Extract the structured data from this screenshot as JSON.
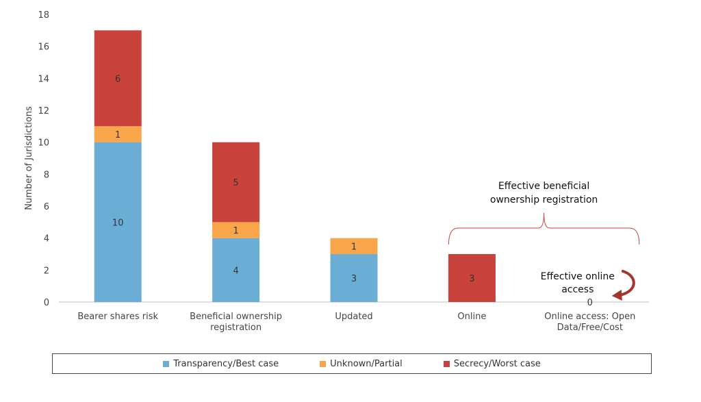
{
  "chart_data": {
    "type": "bar",
    "stacked": true,
    "ylabel": "Number of Jurisdictions",
    "ylim": [
      0,
      18
    ],
    "yticks": [
      0,
      2,
      4,
      6,
      8,
      10,
      12,
      14,
      16,
      18
    ],
    "categories": [
      [
        "Bearer shares risk"
      ],
      [
        "Beneficial ownership",
        "registration"
      ],
      [
        "Updated"
      ],
      [
        "Online"
      ],
      [
        "Online access: Open",
        "Data/Free/Cost"
      ]
    ],
    "series": [
      {
        "name": "Transparency/Best case",
        "color": "#6aaed6",
        "values": [
          10,
          4,
          3,
          0,
          0
        ]
      },
      {
        "name": "Unknown/Partial",
        "color": "#f9a54a",
        "values": [
          1,
          1,
          1,
          0,
          0
        ]
      },
      {
        "name": "Secrecy/Worst case",
        "color": "#c9423c",
        "values": [
          6,
          5,
          0,
          3,
          0
        ]
      }
    ],
    "zero_labels": [
      {
        "category_index": 4,
        "text": "0"
      }
    ],
    "annotations": [
      {
        "lines": [
          "Effective beneficial",
          "ownership registration"
        ],
        "type": "brace",
        "from_category": 3,
        "to_category": 4
      },
      {
        "lines": [
          "Effective online",
          "access"
        ],
        "type": "curved-arrow",
        "category": 4
      }
    ],
    "legend_position": "bottom"
  }
}
